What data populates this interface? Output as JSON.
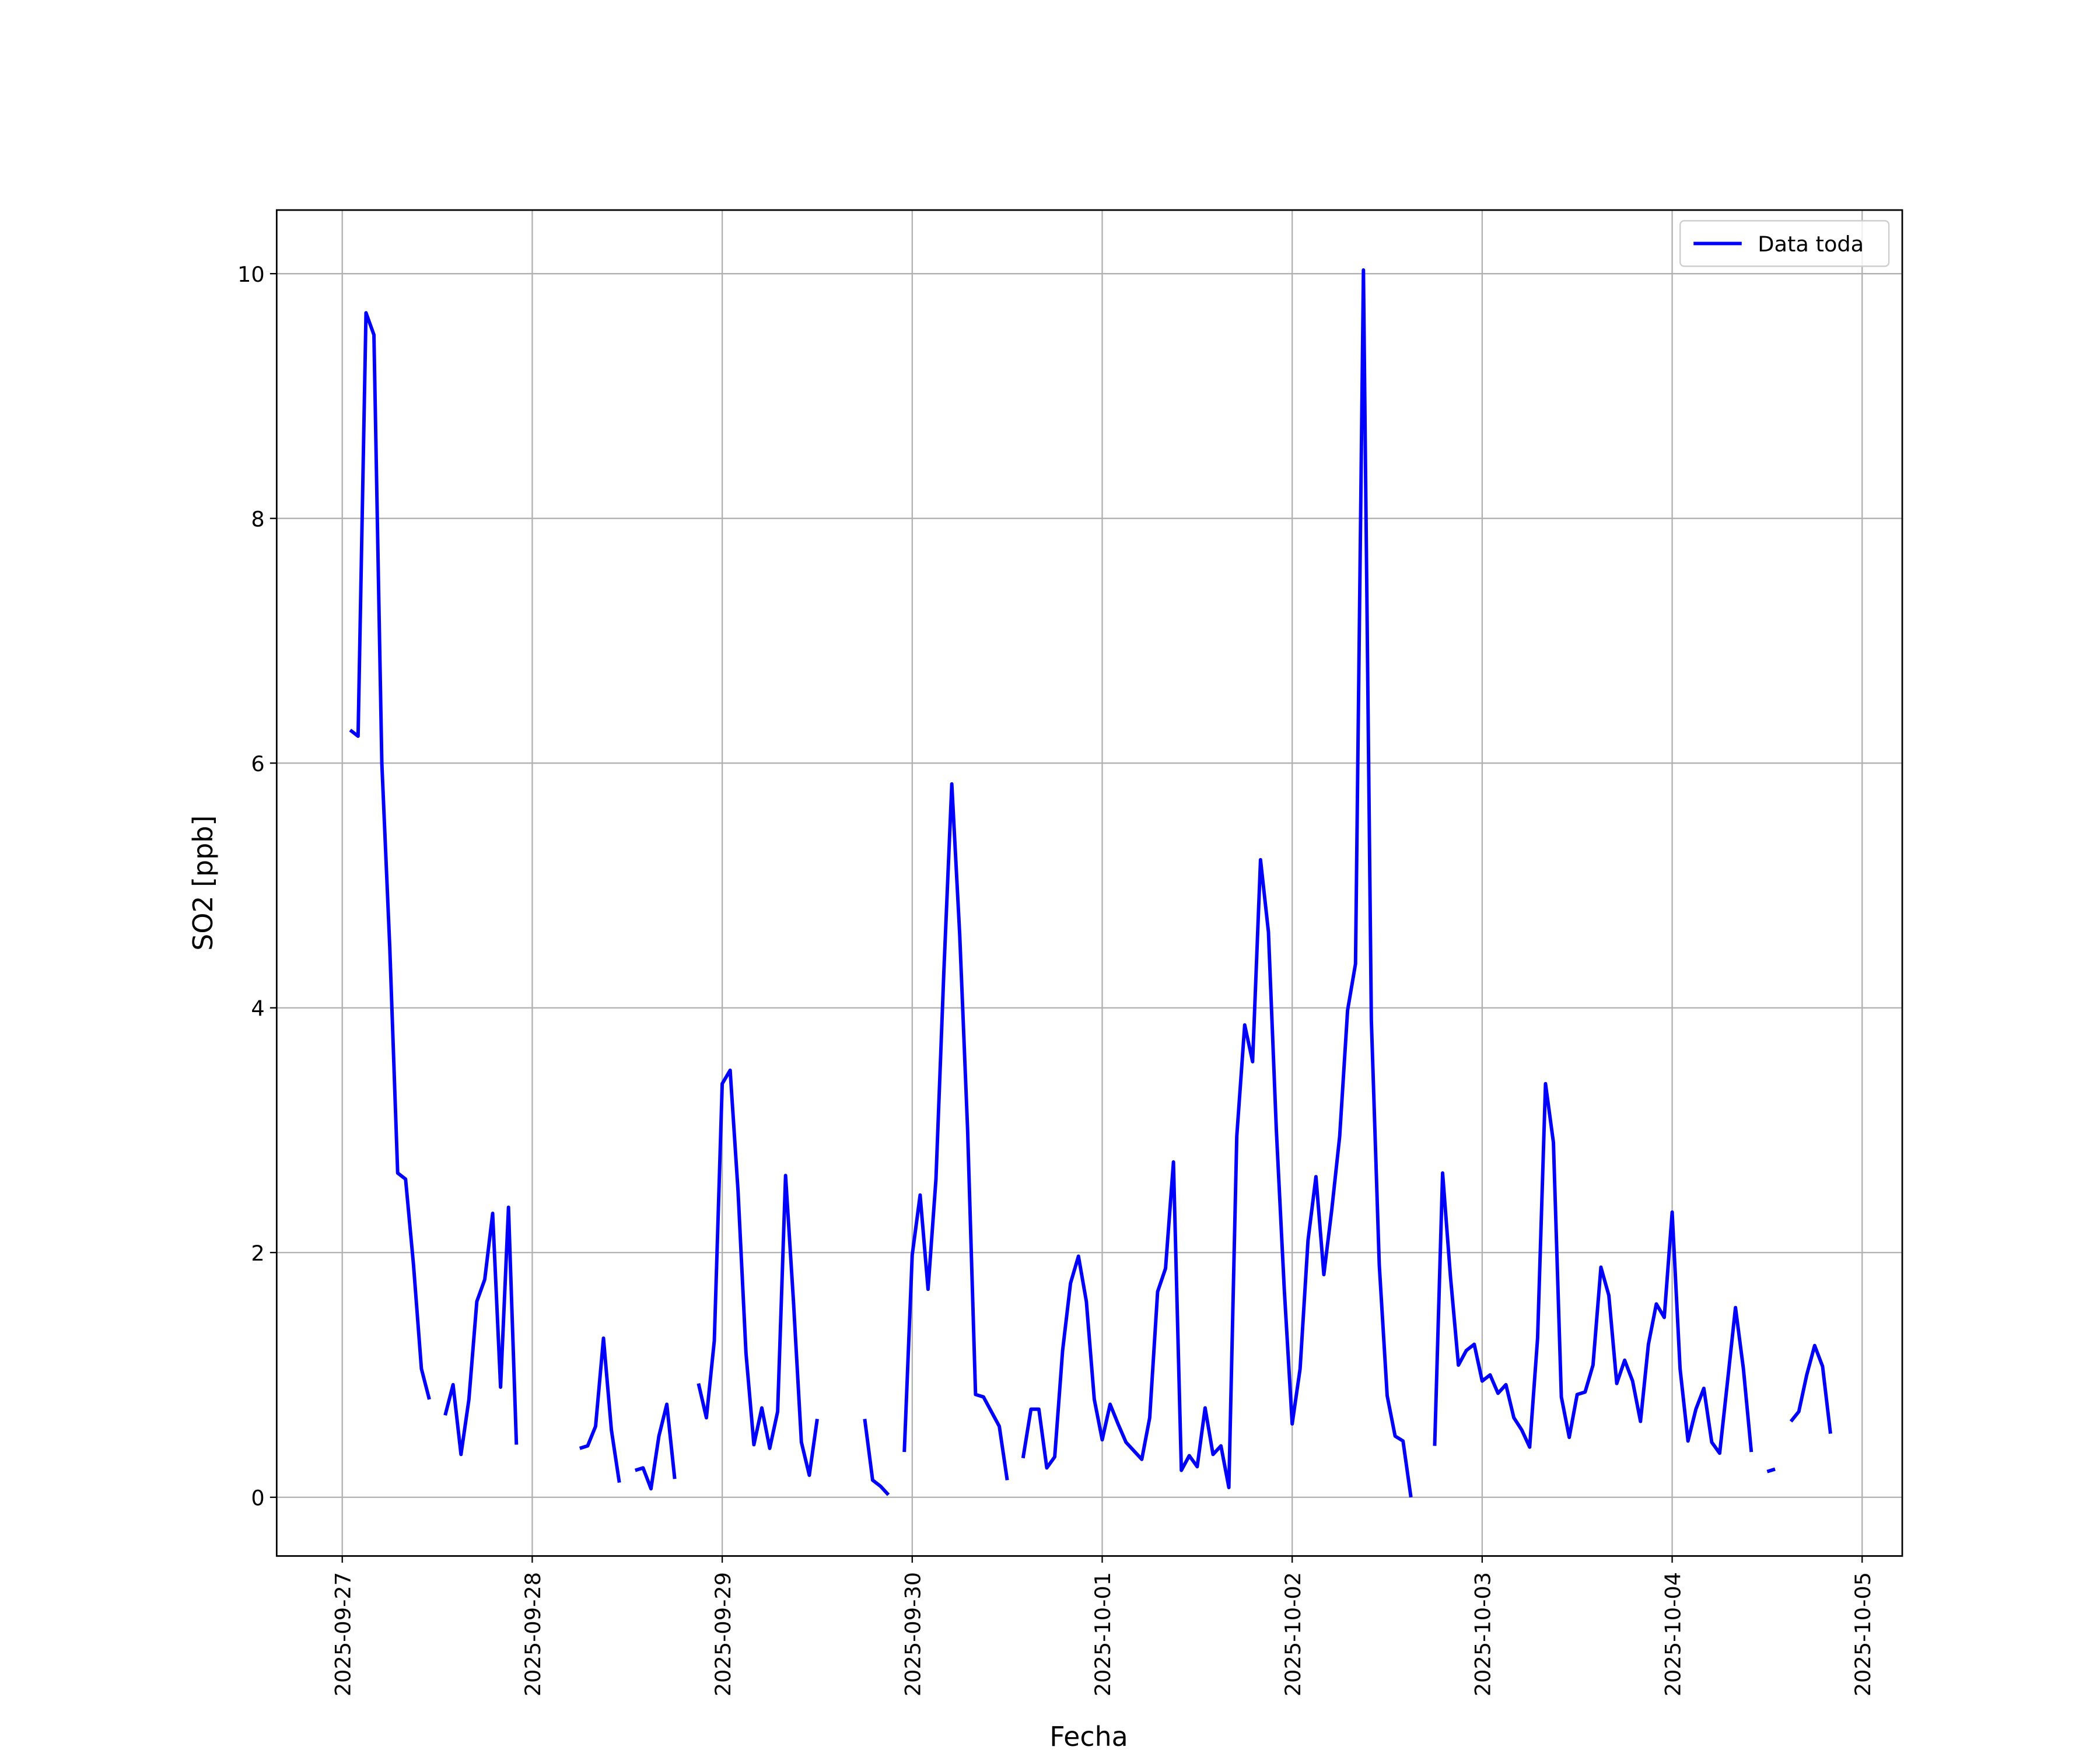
{
  "chart_data": {
    "type": "line",
    "xlabel": "Fecha",
    "ylabel": "SO2 [ppb]",
    "legend": "upper right",
    "grid": true,
    "xlim": [
      "2025-09-26 15:43",
      "2025-10-05 05:04"
    ],
    "ylim": [
      -0.48,
      10.52
    ],
    "yticks": [
      0,
      2,
      4,
      6,
      8,
      10
    ],
    "xticks": [
      "2025-09-27",
      "2025-09-28",
      "2025-09-29",
      "2025-09-30",
      "2025-10-01",
      "2025-10-02",
      "2025-10-03",
      "2025-10-04",
      "2025-10-05"
    ],
    "x": [
      "2025-09-27 01:00",
      "2025-09-27 02:00",
      "2025-09-27 03:00",
      "2025-09-27 04:00",
      "2025-09-27 05:00",
      "2025-09-27 06:00",
      "2025-09-27 07:00",
      "2025-09-27 08:00",
      "2025-09-27 09:00",
      "2025-09-27 10:00",
      "2025-09-27 11:00",
      "2025-09-27 12:00",
      "2025-09-27 13:00",
      "2025-09-27 14:00",
      "2025-09-27 15:00",
      "2025-09-27 16:00",
      "2025-09-27 17:00",
      "2025-09-27 18:00",
      "2025-09-27 19:00",
      "2025-09-27 20:00",
      "2025-09-27 21:00",
      "2025-09-27 22:00",
      "2025-09-27 23:00",
      "2025-09-28 00:00",
      "2025-09-28 01:00",
      "2025-09-28 02:00",
      "2025-09-28 03:00",
      "2025-09-28 04:00",
      "2025-09-28 05:00",
      "2025-09-28 06:00",
      "2025-09-28 07:00",
      "2025-09-28 08:00",
      "2025-09-28 09:00",
      "2025-09-28 10:00",
      "2025-09-28 11:00",
      "2025-09-28 12:00",
      "2025-09-28 13:00",
      "2025-09-28 14:00",
      "2025-09-28 15:00",
      "2025-09-28 16:00",
      "2025-09-28 17:00",
      "2025-09-28 18:00",
      "2025-09-28 19:00",
      "2025-09-28 20:00",
      "2025-09-28 21:00",
      "2025-09-28 22:00",
      "2025-09-28 23:00",
      "2025-09-29 00:00",
      "2025-09-29 01:00",
      "2025-09-29 02:00",
      "2025-09-29 03:00",
      "2025-09-29 04:00",
      "2025-09-29 05:00",
      "2025-09-29 06:00",
      "2025-09-29 07:00",
      "2025-09-29 08:00",
      "2025-09-29 09:00",
      "2025-09-29 10:00",
      "2025-09-29 11:00",
      "2025-09-29 12:00",
      "2025-09-29 13:00",
      "2025-09-29 14:00",
      "2025-09-29 15:00",
      "2025-09-29 16:00",
      "2025-09-29 17:00",
      "2025-09-29 18:00",
      "2025-09-29 19:00",
      "2025-09-29 20:00",
      "2025-09-29 21:00",
      "2025-09-29 22:00",
      "2025-09-29 23:00",
      "2025-09-30 00:00",
      "2025-09-30 01:00",
      "2025-09-30 02:00",
      "2025-09-30 03:00",
      "2025-09-30 04:00",
      "2025-09-30 05:00",
      "2025-09-30 06:00",
      "2025-09-30 07:00",
      "2025-09-30 08:00",
      "2025-09-30 09:00",
      "2025-09-30 10:00",
      "2025-09-30 11:00",
      "2025-09-30 12:00",
      "2025-09-30 13:00",
      "2025-09-30 14:00",
      "2025-09-30 15:00",
      "2025-09-30 16:00",
      "2025-09-30 17:00",
      "2025-09-30 18:00",
      "2025-09-30 19:00",
      "2025-09-30 20:00",
      "2025-09-30 21:00",
      "2025-09-30 22:00",
      "2025-09-30 23:00",
      "2025-10-01 00:00",
      "2025-10-01 01:00",
      "2025-10-01 02:00",
      "2025-10-01 03:00",
      "2025-10-01 04:00",
      "2025-10-01 05:00",
      "2025-10-01 06:00",
      "2025-10-01 07:00",
      "2025-10-01 08:00",
      "2025-10-01 09:00",
      "2025-10-01 10:00",
      "2025-10-01 11:00",
      "2025-10-01 12:00",
      "2025-10-01 13:00",
      "2025-10-01 14:00",
      "2025-10-01 15:00",
      "2025-10-01 16:00",
      "2025-10-01 17:00",
      "2025-10-01 18:00",
      "2025-10-01 19:00",
      "2025-10-01 20:00",
      "2025-10-01 21:00",
      "2025-10-01 22:00",
      "2025-10-01 23:00",
      "2025-10-02 00:00",
      "2025-10-02 01:00",
      "2025-10-02 02:00",
      "2025-10-02 03:00",
      "2025-10-02 04:00",
      "2025-10-02 05:00",
      "2025-10-02 06:00",
      "2025-10-02 07:00",
      "2025-10-02 08:00",
      "2025-10-02 09:00",
      "2025-10-02 10:00",
      "2025-10-02 11:00",
      "2025-10-02 12:00",
      "2025-10-02 13:00",
      "2025-10-02 14:00",
      "2025-10-02 15:00",
      "2025-10-02 16:00",
      "2025-10-02 17:00",
      "2025-10-02 18:00",
      "2025-10-02 19:00",
      "2025-10-02 20:00",
      "2025-10-02 21:00",
      "2025-10-02 22:00",
      "2025-10-02 23:00",
      "2025-10-03 00:00",
      "2025-10-03 01:00",
      "2025-10-03 02:00",
      "2025-10-03 03:00",
      "2025-10-03 04:00",
      "2025-10-03 05:00",
      "2025-10-03 06:00",
      "2025-10-03 07:00",
      "2025-10-03 08:00",
      "2025-10-03 09:00",
      "2025-10-03 10:00",
      "2025-10-03 11:00",
      "2025-10-03 12:00",
      "2025-10-03 13:00",
      "2025-10-03 14:00",
      "2025-10-03 15:00",
      "2025-10-03 16:00",
      "2025-10-03 17:00",
      "2025-10-03 18:00",
      "2025-10-03 19:00",
      "2025-10-03 20:00",
      "2025-10-03 21:00",
      "2025-10-03 22:00",
      "2025-10-03 23:00",
      "2025-10-04 00:00",
      "2025-10-04 01:00",
      "2025-10-04 02:00",
      "2025-10-04 03:00",
      "2025-10-04 04:00",
      "2025-10-04 05:00",
      "2025-10-04 06:00",
      "2025-10-04 07:00",
      "2025-10-04 08:00",
      "2025-10-04 09:00",
      "2025-10-04 10:00",
      "2025-10-04 11:00",
      "2025-10-04 12:00",
      "2025-10-04 13:00",
      "2025-10-04 14:00",
      "2025-10-04 15:00",
      "2025-10-04 16:00",
      "2025-10-04 17:00",
      "2025-10-04 18:00",
      "2025-10-04 19:00",
      "2025-10-04 20:00"
    ],
    "series": [
      {
        "name": "Data toda",
        "color": "#0000ff",
        "values": [
          6.27,
          6.22,
          9.68,
          9.5,
          6.0,
          4.5,
          2.65,
          2.6,
          1.9,
          1.05,
          0.8,
          null,
          0.67,
          0.92,
          0.35,
          0.8,
          1.6,
          1.78,
          2.32,
          0.9,
          2.37,
          0.43,
          null,
          null,
          null,
          null,
          null,
          null,
          null,
          0.4,
          0.42,
          0.58,
          1.3,
          0.55,
          0.12,
          null,
          0.22,
          0.24,
          0.07,
          0.5,
          0.76,
          0.15,
          null,
          null,
          0.93,
          0.65,
          1.28,
          3.38,
          3.49,
          2.5,
          1.18,
          0.43,
          0.73,
          0.4,
          0.7,
          2.63,
          1.6,
          0.45,
          0.18,
          0.64,
          null,
          null,
          null,
          null,
          null,
          0.64,
          0.14,
          0.09,
          0.02,
          null,
          0.37,
          1.98,
          2.47,
          1.7,
          2.6,
          4.3,
          5.83,
          4.6,
          3.0,
          0.84,
          0.82,
          0.7,
          0.58,
          0.14,
          null,
          0.32,
          0.72,
          0.72,
          0.24,
          0.33,
          1.2,
          1.75,
          1.97,
          1.6,
          0.8,
          0.47,
          0.76,
          0.6,
          0.45,
          0.38,
          0.31,
          0.65,
          1.68,
          1.87,
          2.74,
          0.22,
          0.34,
          0.25,
          0.73,
          0.35,
          0.42,
          0.08,
          2.95,
          3.86,
          3.56,
          5.21,
          4.62,
          3.0,
          1.7,
          0.6,
          1.05,
          2.1,
          2.62,
          1.82,
          2.35,
          2.95,
          3.98,
          4.36,
          10.03,
          3.9,
          1.9,
          0.83,
          0.5,
          0.46,
          0.0,
          null,
          null,
          0.42,
          2.65,
          1.8,
          1.08,
          1.2,
          1.25,
          0.95,
          1.0,
          0.85,
          0.92,
          0.65,
          0.55,
          0.41,
          1.3,
          3.38,
          2.9,
          0.82,
          0.49,
          0.84,
          0.86,
          1.08,
          1.88,
          1.65,
          0.93,
          1.12,
          0.95,
          0.62,
          1.25,
          1.58,
          1.47,
          2.33,
          1.05,
          0.46,
          0.72,
          0.89,
          0.45,
          0.36,
          0.95,
          1.55,
          1.05,
          0.37,
          null,
          0.21,
          0.23,
          null,
          0.62,
          0.7,
          1.0,
          1.24,
          1.07,
          0.52
        ]
      }
    ]
  }
}
